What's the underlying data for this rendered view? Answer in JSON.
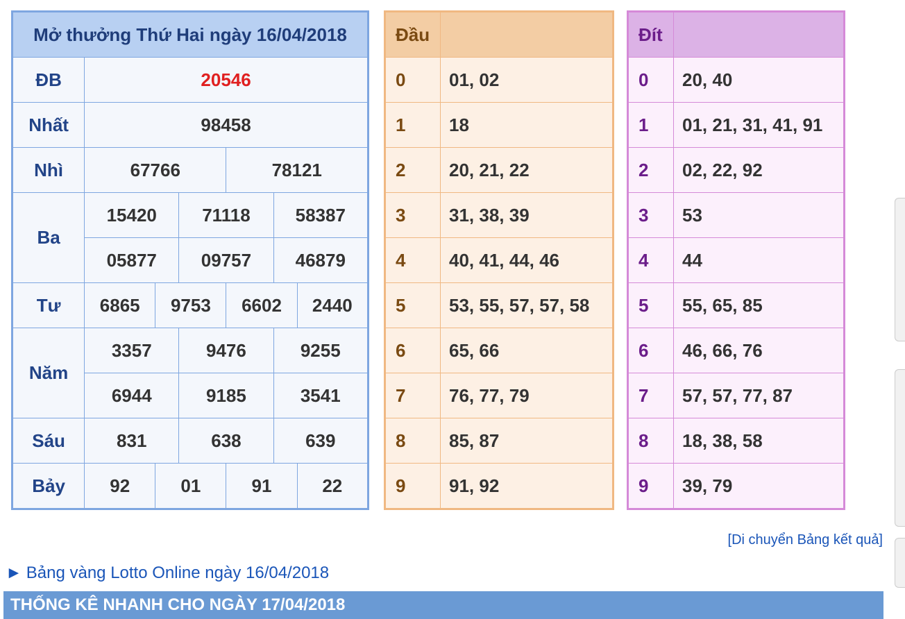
{
  "results": {
    "title": "Mở thưởng Thứ Hai ngày 16/04/2018",
    "db": {
      "label": "ĐB",
      "value": "20546"
    },
    "nhat": {
      "label": "Nhất",
      "value": "98458"
    },
    "nhi": {
      "label": "Nhì",
      "values": [
        "67766",
        "78121"
      ]
    },
    "ba": {
      "label": "Ba",
      "values": [
        "15420",
        "71118",
        "58387",
        "05877",
        "09757",
        "46879"
      ]
    },
    "tu": {
      "label": "Tư",
      "values": [
        "6865",
        "9753",
        "6602",
        "2440"
      ]
    },
    "nam": {
      "label": "Năm",
      "values": [
        "3357",
        "9476",
        "9255",
        "6944",
        "9185",
        "3541"
      ]
    },
    "sau": {
      "label": "Sáu",
      "values": [
        "831",
        "638",
        "639"
      ]
    },
    "bay": {
      "label": "Bảy",
      "values": [
        "92",
        "01",
        "91",
        "22"
      ]
    },
    "special_color": "#e02020"
  },
  "dau": {
    "header": "Đầu",
    "rows": [
      {
        "digit": "0",
        "nums": "01, 02"
      },
      {
        "digit": "1",
        "nums": "18"
      },
      {
        "digit": "2",
        "nums": "20, 21, 22"
      },
      {
        "digit": "3",
        "nums": "31, 38, 39"
      },
      {
        "digit": "4",
        "nums": "40, 41, 44, 46"
      },
      {
        "digit": "5",
        "nums": "53, 55, 57, 57, 58"
      },
      {
        "digit": "6",
        "nums": "65, 66"
      },
      {
        "digit": "7",
        "nums": "76, 77, 79"
      },
      {
        "digit": "8",
        "nums": "85, 87"
      },
      {
        "digit": "9",
        "nums": "91, 92"
      }
    ]
  },
  "dit": {
    "header": "Đít",
    "rows": [
      {
        "digit": "0",
        "nums": "20, 40"
      },
      {
        "digit": "1",
        "nums": "01, 21, 31, 41, 91"
      },
      {
        "digit": "2",
        "nums": "02, 22, 92"
      },
      {
        "digit": "3",
        "nums": "53"
      },
      {
        "digit": "4",
        "nums": "44"
      },
      {
        "digit": "5",
        "nums": "55, 65, 85"
      },
      {
        "digit": "6",
        "nums": "46, 66, 76"
      },
      {
        "digit": "7",
        "nums": "57, 57, 77, 87"
      },
      {
        "digit": "8",
        "nums": "18, 38, 58"
      },
      {
        "digit": "9",
        "nums": "39, 79"
      }
    ]
  },
  "links": {
    "move_table": "[Di chuyển Bảng kết quả]",
    "lotto_arrow": "►",
    "lotto_online": "Bảng vàng Lotto Online ngày 16/04/2018"
  },
  "stats": {
    "title": "THỐNG KÊ NHANH CHO NGÀY 17/04/2018"
  }
}
